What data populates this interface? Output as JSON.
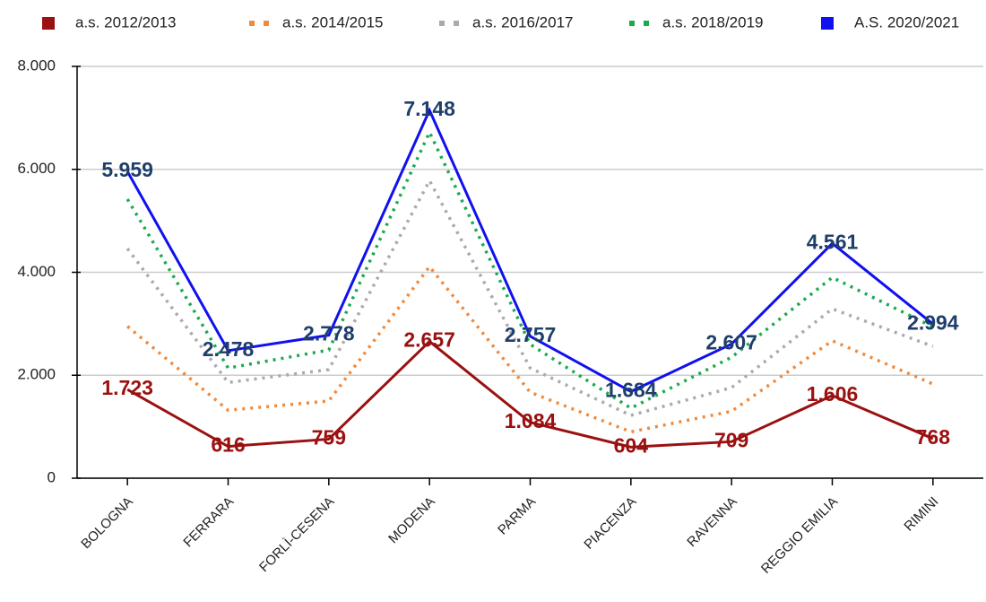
{
  "chart_data": {
    "type": "line",
    "categories": [
      "BOLOGNA",
      "FERRARA",
      "FORLÌ-CESENA",
      "MODENA",
      "PARMA",
      "PIACENZA",
      "RAVENNA",
      "REGGIO EMILIA",
      "RIMINI"
    ],
    "series": [
      {
        "name": "a.s. 2012/2013",
        "color": "#9b1010",
        "line_style": "solid",
        "label_color": "#9b1010",
        "values": [
          1723,
          616,
          759,
          2657,
          1084,
          604,
          709,
          1606,
          768
        ],
        "value_labels": [
          "1.723",
          "616",
          "759",
          "2.657",
          "1.084",
          "604",
          "709",
          "1.606",
          "768"
        ]
      },
      {
        "name": "a.s. 2014/2015",
        "color": "#f08a3c",
        "line_style": "dotted",
        "values": [
          2950,
          1320,
          1500,
          4110,
          1670,
          900,
          1300,
          2670,
          1830
        ]
      },
      {
        "name": "a.s. 2016/2017",
        "color": "#aaaaaa",
        "line_style": "dotted",
        "values": [
          4460,
          1860,
          2110,
          5780,
          2140,
          1220,
          1760,
          3290,
          2560
        ]
      },
      {
        "name": "a.s. 2018/2019",
        "color": "#1aab4f",
        "line_style": "dotted",
        "values": [
          5420,
          2140,
          2490,
          6720,
          2600,
          1360,
          2350,
          3900,
          2940
        ]
      },
      {
        "name": "A.S. 2020/2021",
        "color": "#1010f0",
        "line_style": "solid",
        "label_color": "#1f3f6a",
        "values": [
          5959,
          2478,
          2778,
          7148,
          2757,
          1684,
          2607,
          4561,
          2994
        ],
        "value_labels": [
          "5.959",
          "2.478",
          "2.778",
          "7.148",
          "2.757",
          "1.684",
          "2.607",
          "4.561",
          "2.994"
        ]
      }
    ],
    "ylim": [
      0,
      8000
    ],
    "yticks": [
      0,
      {
        "value": 2000,
        "label": "2.000"
      },
      {
        "value": 4000,
        "label": "4.000"
      },
      {
        "value": 6000,
        "label": "6.000"
      },
      {
        "value": 8000,
        "label": "8.000"
      }
    ],
    "grid": true,
    "legend": "top"
  }
}
